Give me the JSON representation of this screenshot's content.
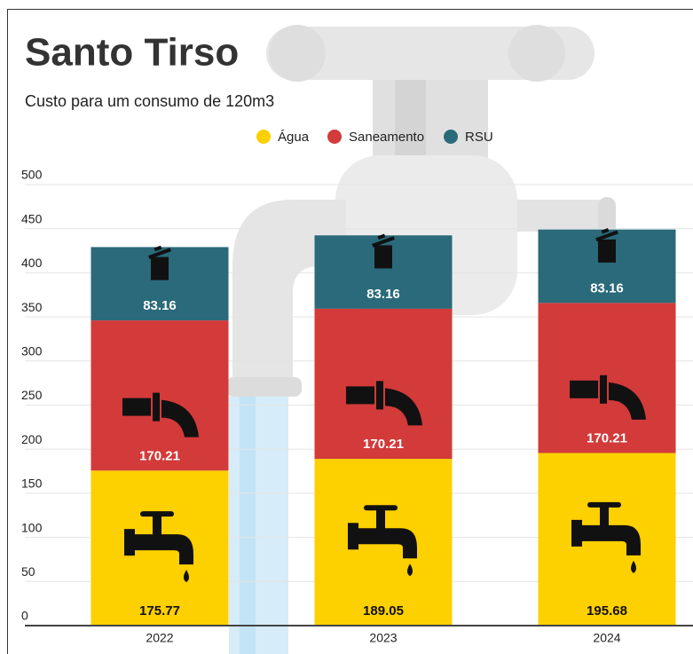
{
  "chart_data": {
    "type": "stacked_bar",
    "title": "Santo Tirso",
    "subtitle": "Custo para um consumo de 120m3",
    "categories": [
      "2022",
      "2023",
      "2024"
    ],
    "series": [
      {
        "name": "Água",
        "color": "#fdd000",
        "values": [
          175.77,
          189.05,
          195.68
        ]
      },
      {
        "name": "Saneamento",
        "color": "#d33a3a",
        "values": [
          170.21,
          170.21,
          170.21
        ]
      },
      {
        "name": "RSU",
        "color": "#2a6a7a",
        "values": [
          83.16,
          83.16,
          83.16
        ]
      }
    ],
    "ylim": [
      0,
      500
    ],
    "yticks": [
      0,
      50,
      100,
      150,
      200,
      250,
      300,
      350,
      400,
      450,
      500
    ],
    "grid": true,
    "legend": "top"
  }
}
